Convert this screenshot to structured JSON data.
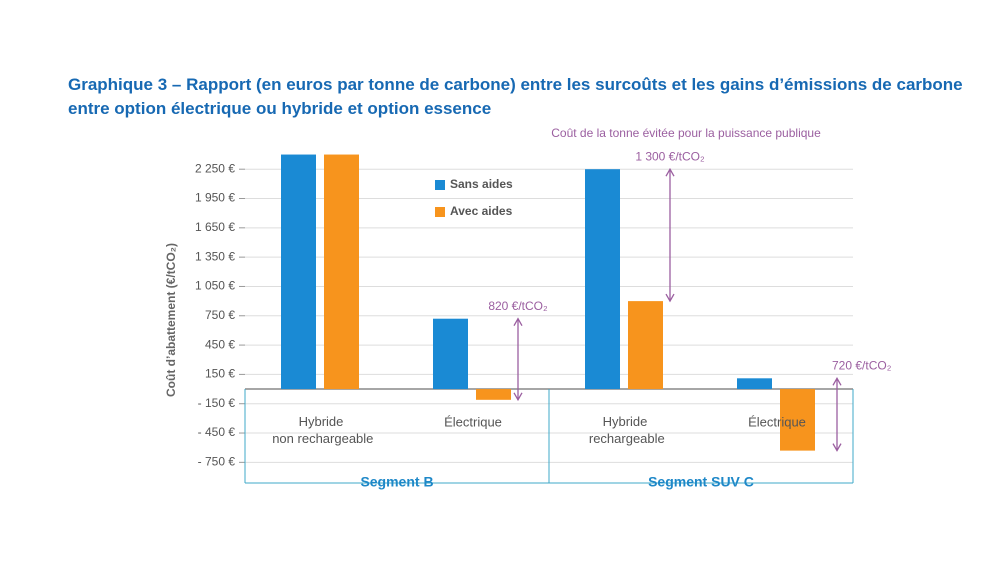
{
  "chart_data": {
    "type": "bar",
    "title": "Graphique 3 – Rapport (en euros par tonne de carbone) entre les surcoûts et les gains d’émissions de carbone",
    "subtitle": "entre option électrique ou hybride et option essence",
    "y_label": "Coût d’abattement (€/tCO₂)",
    "categories": [
      "Hybride non rechargeable",
      "Électrique",
      "Hybride rechargeable",
      "Électrique"
    ],
    "segments": [
      "Segment B",
      "Segment SUV C"
    ],
    "series": [
      {
        "name": "Sans aides",
        "color": "#1a8ad4",
        "values": [
          2400,
          720,
          2250,
          110
        ]
      },
      {
        "name": "Avec aides",
        "color": "#f7941d",
        "values": [
          2400,
          -110,
          900,
          -630
        ]
      }
    ],
    "annotation_header": "Coût de la tonne évitée pour la puissance publique",
    "annotations": [
      null,
      "820 €/tCO₂",
      "1 300 €/tCO₂",
      "720 €/tCO₂"
    ],
    "ylim": [
      -900,
      2600
    ],
    "yticks": [
      {
        "value": 2250,
        "label": "2 250 €"
      },
      {
        "value": 1950,
        "label": "1 950 €"
      },
      {
        "value": 1650,
        "label": "1 650 €"
      },
      {
        "value": 1350,
        "label": "1 350 €"
      },
      {
        "value": 1050,
        "label": "1 050 €"
      },
      {
        "value": 750,
        "label": "750 €"
      },
      {
        "value": 450,
        "label": "450 €"
      },
      {
        "value": 150,
        "label": "150 €"
      },
      {
        "value": -150,
        "label": "- 150 €"
      },
      {
        "value": -450,
        "label": "- 450 €"
      },
      {
        "value": -750,
        "label": "- 750 €"
      }
    ],
    "grid": true
  }
}
